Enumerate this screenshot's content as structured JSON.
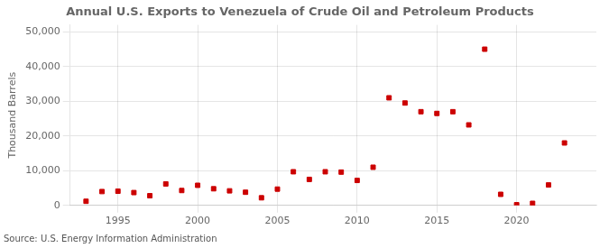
{
  "chart_data": {
    "type": "scatter",
    "title": "Annual U.S. Exports to Venezuela of Crude Oil and Petroleum Products",
    "ylabel": "Thousand Barrels",
    "source": "Source: U.S. Energy Information Administration",
    "x": [
      1993,
      1994,
      1995,
      1996,
      1997,
      1998,
      1999,
      2000,
      2001,
      2002,
      2003,
      2004,
      2005,
      2006,
      2007,
      2008,
      2009,
      2010,
      2011,
      2012,
      2013,
      2014,
      2015,
      2016,
      2017,
      2018,
      2019,
      2020,
      2021,
      2022,
      2023
    ],
    "values": [
      1200,
      4000,
      4100,
      3700,
      2800,
      6200,
      4300,
      5800,
      4800,
      4200,
      3800,
      2200,
      4700,
      9700,
      7500,
      9700,
      9600,
      7200,
      11000,
      31000,
      29500,
      27000,
      26500,
      27000,
      23200,
      45000,
      3200,
      200,
      600,
      5900,
      18000
    ],
    "color": "#cc0000",
    "marker": "square",
    "xlim": [
      1992.0,
      2025.0
    ],
    "ylim": [
      0,
      52000
    ],
    "xticks": [
      1995,
      2000,
      2005,
      2010,
      2015,
      2020
    ],
    "yticks": [
      0,
      {
        "value": 10000,
        "label": "10,000"
      },
      {
        "value": 20000,
        "label": "20,000"
      },
      {
        "value": 30000,
        "label": "30,000"
      },
      {
        "value": 40000,
        "label": "40,000"
      },
      {
        "value": 50000,
        "label": "50,000"
      }
    ],
    "grid": true
  }
}
